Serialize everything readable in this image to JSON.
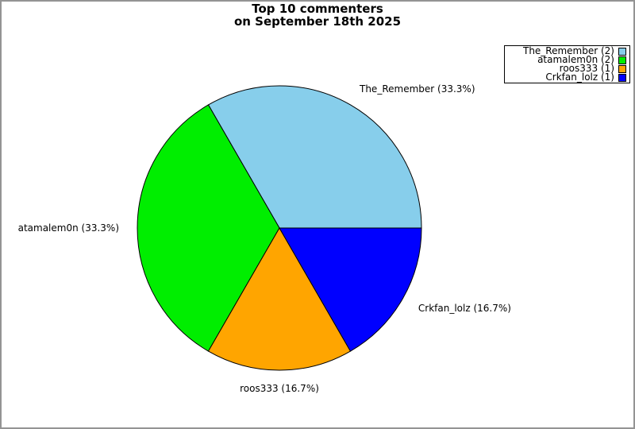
{
  "figure": {
    "background": "#ffffff",
    "frame_border_color": "#949494"
  },
  "title": {
    "line1": "Top 10 commenters",
    "line2": "on September 18th 2025"
  },
  "chart_data": {
    "type": "pie",
    "title": "Top 10 commenters on September 18th 2025",
    "unit": "comments",
    "start_angle_deg": 0,
    "direction": "counterclockwise",
    "edge_color": "#000000",
    "label_color": "#000000",
    "legend_position": "upper-right",
    "legend_border_color": "#000000",
    "slices": [
      {
        "name": "The_Remember",
        "value": 2,
        "pct": 33.3,
        "color": "#87CEEB",
        "callout": "The_Remember (33.3%)",
        "legend_label": "The_Remember (2)"
      },
      {
        "name": "atamalem0n",
        "value": 2,
        "pct": 33.3,
        "color": "#00EE00",
        "callout": "atamalem0n (33.3%)",
        "legend_label": "atamalem0n (2)"
      },
      {
        "name": "roos333",
        "value": 1,
        "pct": 16.7,
        "color": "#FFA500",
        "callout": "roos333 (16.7%)",
        "legend_label": "roos333 (1)"
      },
      {
        "name": "Crkfan_lolz",
        "value": 1,
        "pct": 16.7,
        "color": "#0000FF",
        "callout": "Crkfan_lolz (16.7%)",
        "legend_label": "Crkfan_lolz (1)"
      }
    ]
  }
}
